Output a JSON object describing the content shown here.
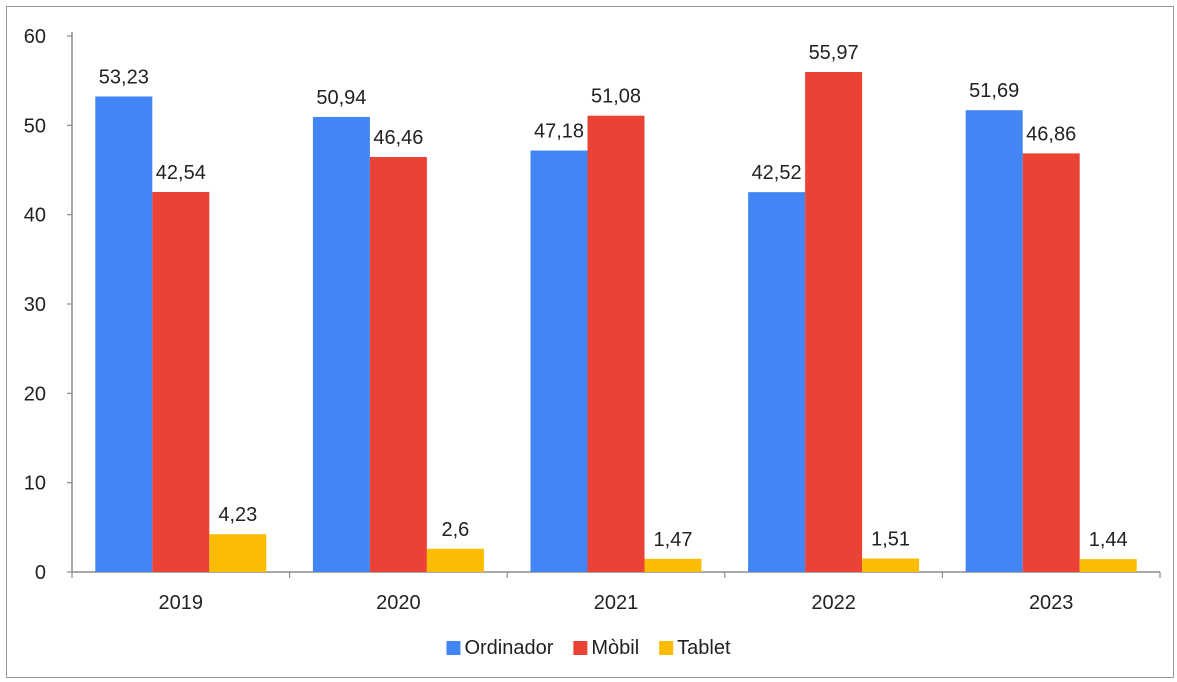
{
  "chart_data": {
    "type": "bar",
    "title": "",
    "xlabel": "",
    "ylabel": "",
    "categories": [
      "2019",
      "2020",
      "2021",
      "2022",
      "2023"
    ],
    "series": [
      {
        "name": "Ordinador",
        "color": "#4285F4",
        "values": [
          53.23,
          50.94,
          47.18,
          42.52,
          51.69
        ],
        "labels": [
          "53,23",
          "50,94",
          "47,18",
          "42,52",
          "51,69"
        ]
      },
      {
        "name": "Mòbil",
        "color": "#EA4335",
        "values": [
          42.54,
          46.46,
          51.08,
          55.97,
          46.86
        ],
        "labels": [
          "42,54",
          "46,46",
          "51,08",
          "55,97",
          "46,86"
        ]
      },
      {
        "name": "Tablet",
        "color": "#FBBC04",
        "values": [
          4.23,
          2.6,
          1.47,
          1.51,
          1.44
        ],
        "labels": [
          "4,23",
          "2,6",
          "1,47",
          "1,51",
          "1,44"
        ]
      }
    ],
    "ylim": [
      0,
      60
    ],
    "yticks": [
      0,
      10,
      20,
      30,
      40,
      50,
      60
    ],
    "grid": false,
    "legend_position": "bottom"
  }
}
